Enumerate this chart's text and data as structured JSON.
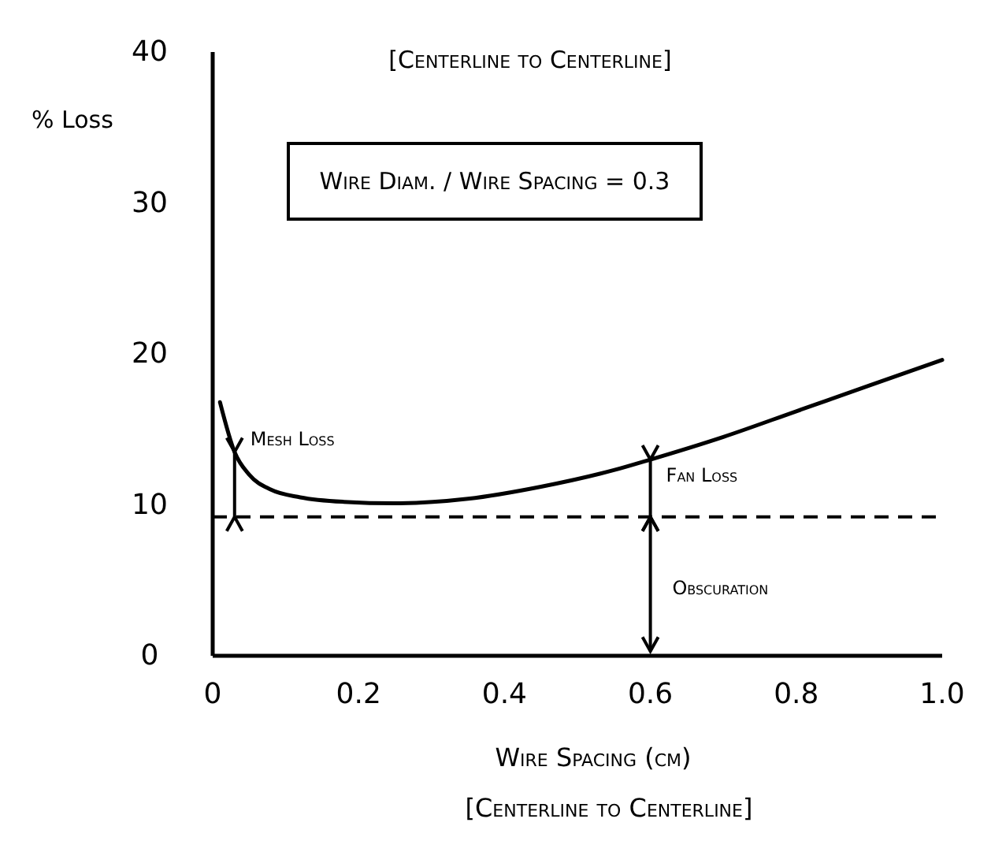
{
  "chart_data": {
    "type": "line",
    "title": "[Centerline to Centerline]",
    "xlabel": "Wire Spacing (cm)",
    "ylabel": "% Loss",
    "x": [
      0.01,
      0.03,
      0.05,
      0.08,
      0.12,
      0.18,
      0.25,
      0.35,
      0.45,
      0.55,
      0.6,
      0.7,
      0.8,
      0.9,
      1.0
    ],
    "series": [
      {
        "color": "#000000",
        "values": [
          16.8,
          13.5,
          12,
          11,
          10.5,
          10.2,
          10.1,
          10.4,
          11.2,
          12.3,
          13,
          14.5,
          16.2,
          17.9,
          19.6
        ]
      }
    ],
    "xlim": [
      0,
      1
    ],
    "xticks": [
      0,
      0.2,
      0.4,
      0.6,
      0.8,
      {
        "value": 1,
        "label": "1.0"
      }
    ],
    "ylim": [
      0,
      40
    ],
    "yticks": [
      0,
      10,
      20,
      30,
      40
    ],
    "ref_lines": [
      {
        "axis": "y",
        "value": 9.2,
        "color": "#000000",
        "line_style": "dashed"
      }
    ],
    "annotations": [
      "Wire Diam. / Wire Spacing = 0.3",
      "[Centerline to Centerline]",
      {
        "text": "Mesh Loss",
        "x": 0.03,
        "y": 13.5
      },
      {
        "text": "Fan Loss",
        "x": 0.6,
        "y": 13
      },
      "Obscuration"
    ],
    "grid": false,
    "marker": "none",
    "line_style": "solid"
  }
}
